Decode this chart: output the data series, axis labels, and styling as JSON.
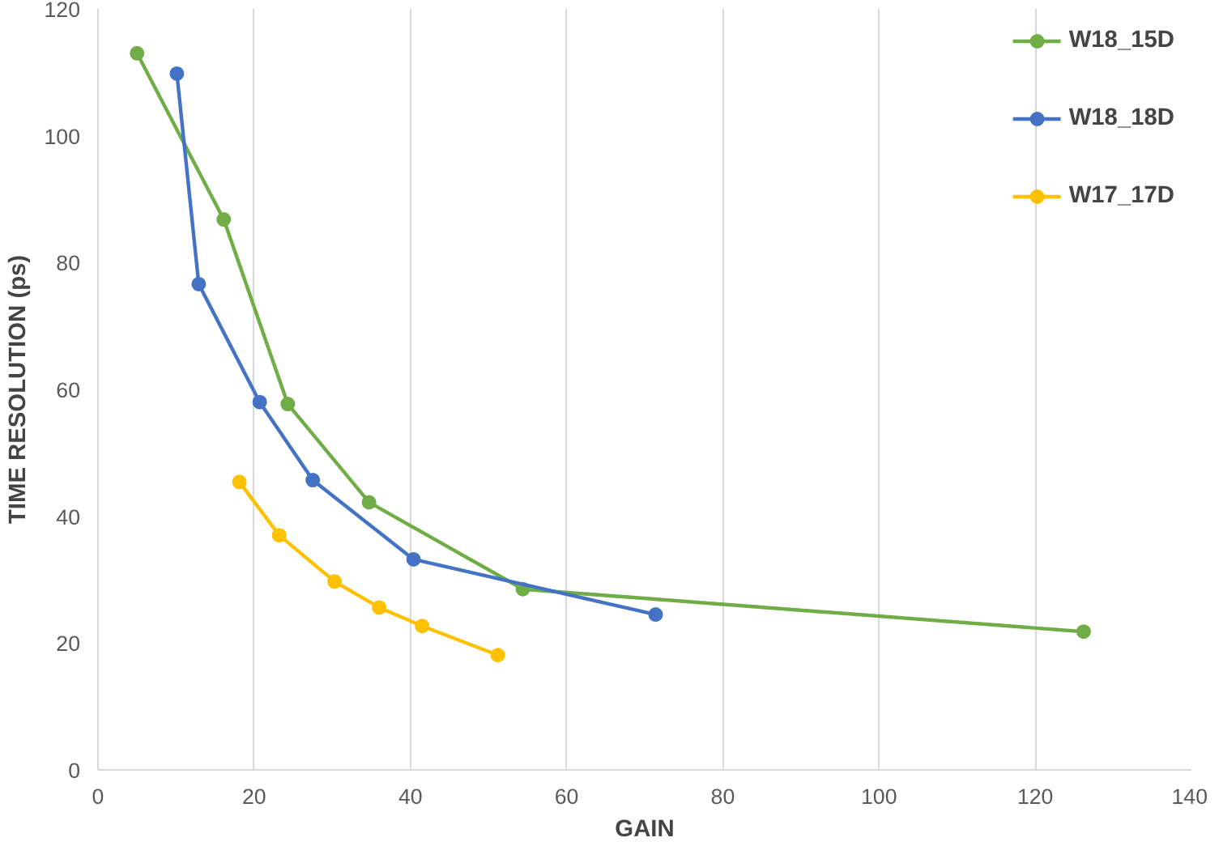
{
  "chart_data": {
    "type": "line",
    "xlabel": "GAIN",
    "ylabel": "TIME RESOLUTION (ps)",
    "xlim": [
      0,
      140
    ],
    "xticks": [
      0,
      20,
      40,
      60,
      80,
      100,
      120,
      140
    ],
    "ylim": [
      0,
      120
    ],
    "yticks": [
      0,
      20,
      40,
      60,
      80,
      100,
      120
    ],
    "grid": "x",
    "legend": "top right",
    "marker": "circle",
    "line_style": "solid",
    "series": [
      {
        "name": "W18_15D",
        "color": "#70ad47",
        "x": [
          5.0,
          16.1,
          24.3,
          34.7,
          54.4,
          126.2
        ],
        "values": [
          113,
          86.8,
          57.7,
          42.2,
          28.5,
          21.8
        ]
      },
      {
        "name": "W18_18D",
        "color": "#4472c4",
        "x": [
          10.1,
          12.9,
          20.7,
          27.5,
          40.4,
          71.4
        ],
        "values": [
          109.8,
          76.6,
          58.0,
          45.7,
          33.2,
          24.5
        ]
      },
      {
        "name": "W17_17D",
        "color": "#ffc000",
        "x": [
          18.1,
          23.2,
          30.3,
          36.0,
          41.5,
          51.2
        ],
        "values": [
          45.4,
          37.0,
          29.7,
          25.6,
          22.7,
          18.1
        ]
      }
    ]
  }
}
